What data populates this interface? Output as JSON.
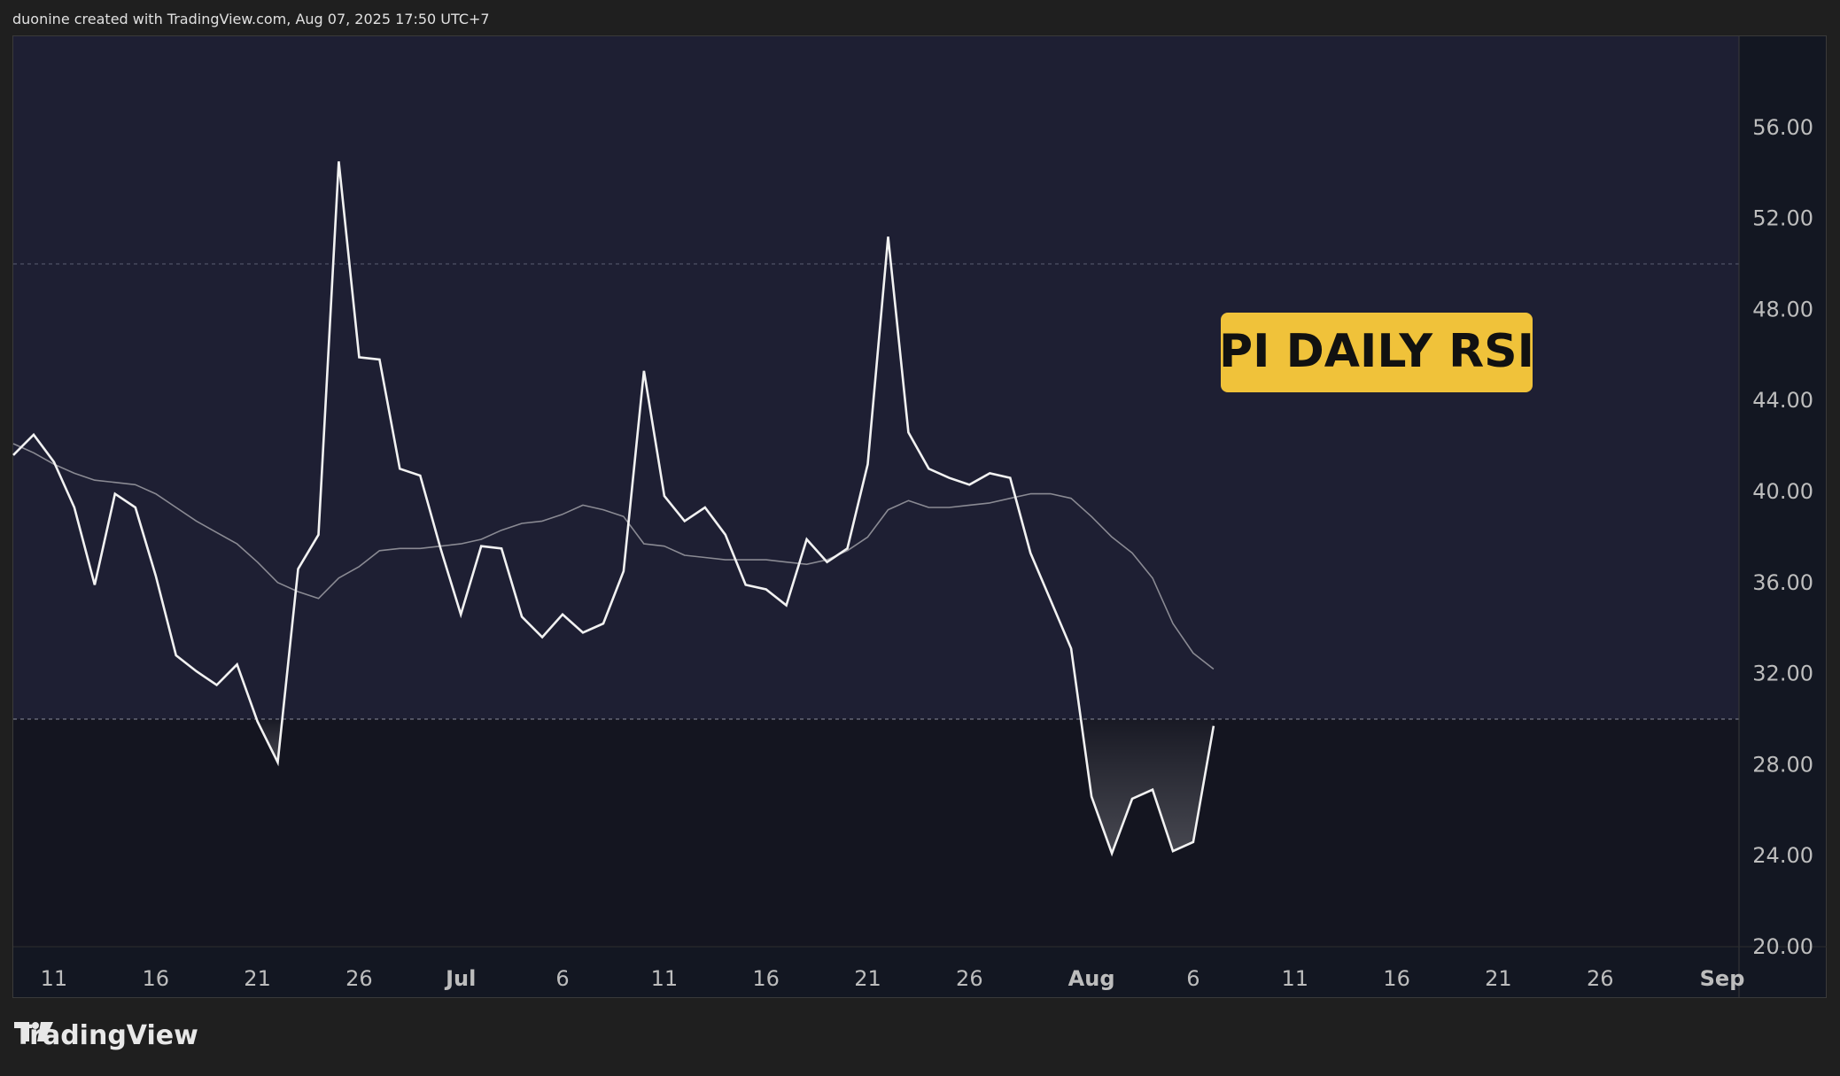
{
  "header": {
    "attribution": "duonine created with TradingView.com, Aug 07, 2025 17:50 UTC+7"
  },
  "footer": {
    "brand": "TradingView",
    "brand_icon": "tradingview-logo-icon"
  },
  "colors": {
    "page_bg": "#1f1f1f",
    "zone_bg": "#1e1f33",
    "oversold_bg": "#141520",
    "rsi_line": "#f2f2f2",
    "ma_line": "#8a8a93",
    "label_bg": "#f0c23a",
    "label_text": "#111111",
    "axis_text": "#bdbdbd",
    "guide_line": "#5a5d70"
  },
  "chart_data": {
    "type": "line",
    "title": "",
    "annotation": "PI DAILY RSI",
    "xlabel": "",
    "ylabel": "",
    "ylim": [
      20,
      60
    ],
    "y_ticks": [
      "20.00",
      "24.00",
      "28.00",
      "32.00",
      "36.00",
      "40.00",
      "44.00",
      "48.00",
      "52.00",
      "56.00"
    ],
    "x_axis_date_range": [
      "2025-06-09",
      "2025-09-01"
    ],
    "x_ticks": [
      {
        "date": "2025-06-11",
        "label": "11"
      },
      {
        "date": "2025-06-16",
        "label": "16"
      },
      {
        "date": "2025-06-21",
        "label": "21"
      },
      {
        "date": "2025-06-26",
        "label": "26"
      },
      {
        "date": "2025-07-01",
        "label": "Jul"
      },
      {
        "date": "2025-07-06",
        "label": "6"
      },
      {
        "date": "2025-07-11",
        "label": "11"
      },
      {
        "date": "2025-07-16",
        "label": "16"
      },
      {
        "date": "2025-07-21",
        "label": "21"
      },
      {
        "date": "2025-07-26",
        "label": "26"
      },
      {
        "date": "2025-08-01",
        "label": "Aug"
      },
      {
        "date": "2025-08-06",
        "label": "6"
      },
      {
        "date": "2025-08-11",
        "label": "11"
      },
      {
        "date": "2025-08-16",
        "label": "16"
      },
      {
        "date": "2025-08-21",
        "label": "21"
      },
      {
        "date": "2025-08-26",
        "label": "26"
      },
      {
        "date": "2025-09-01",
        "label": "Sep"
      }
    ],
    "bands": {
      "upper": 50,
      "lower": 30
    },
    "x": [
      "2025-06-09",
      "2025-06-10",
      "2025-06-11",
      "2025-06-12",
      "2025-06-13",
      "2025-06-14",
      "2025-06-15",
      "2025-06-16",
      "2025-06-17",
      "2025-06-18",
      "2025-06-19",
      "2025-06-20",
      "2025-06-21",
      "2025-06-22",
      "2025-06-23",
      "2025-06-24",
      "2025-06-25",
      "2025-06-26",
      "2025-06-27",
      "2025-06-28",
      "2025-06-29",
      "2025-06-30",
      "2025-07-01",
      "2025-07-02",
      "2025-07-03",
      "2025-07-04",
      "2025-07-05",
      "2025-07-06",
      "2025-07-07",
      "2025-07-08",
      "2025-07-09",
      "2025-07-10",
      "2025-07-11",
      "2025-07-12",
      "2025-07-13",
      "2025-07-14",
      "2025-07-15",
      "2025-07-16",
      "2025-07-17",
      "2025-07-18",
      "2025-07-19",
      "2025-07-20",
      "2025-07-21",
      "2025-07-22",
      "2025-07-23",
      "2025-07-24",
      "2025-07-25",
      "2025-07-26",
      "2025-07-27",
      "2025-07-28",
      "2025-07-29",
      "2025-07-30",
      "2025-07-31",
      "2025-08-01",
      "2025-08-02",
      "2025-08-03",
      "2025-08-04",
      "2025-08-05",
      "2025-08-06",
      "2025-08-07"
    ],
    "series": [
      {
        "values": [
          41.6,
          42.5,
          41.3,
          39.3,
          35.9,
          39.9,
          39.3,
          36.3,
          32.8,
          32.1,
          31.5,
          32.4,
          29.9,
          28.1,
          36.6,
          38.1,
          54.5,
          45.9,
          45.8,
          41.0,
          40.7,
          37.5,
          34.6,
          37.6,
          37.5,
          34.5,
          33.6,
          34.6,
          33.8,
          34.2,
          36.5,
          45.3,
          39.8,
          38.7,
          39.3,
          38.1,
          35.9,
          35.7,
          35.0,
          37.9,
          36.9,
          37.5,
          41.2,
          51.2,
          42.6,
          41.0,
          40.6,
          40.3,
          40.8,
          40.6,
          37.3,
          35.2,
          33.1,
          26.6,
          24.1,
          26.5,
          26.9,
          24.2,
          24.6,
          29.7
        ]
      },
      {
        "values": [
          42.1,
          41.7,
          41.2,
          40.8,
          40.5,
          40.4,
          40.3,
          39.9,
          39.3,
          38.7,
          38.2,
          37.7,
          36.9,
          36.0,
          35.6,
          35.3,
          36.2,
          36.7,
          37.4,
          37.5,
          37.5,
          37.6,
          37.7,
          37.9,
          38.3,
          38.6,
          38.7,
          39.0,
          39.4,
          39.2,
          38.9,
          37.7,
          37.6,
          37.2,
          37.1,
          37.0,
          37.0,
          37.0,
          36.9,
          36.8,
          37.0,
          37.4,
          38.0,
          39.2,
          39.6,
          39.3,
          39.3,
          39.4,
          39.5,
          39.7,
          39.9,
          39.9,
          39.7,
          38.9,
          38.0,
          37.3,
          36.2,
          34.2,
          32.9,
          32.2
        ]
      }
    ]
  }
}
